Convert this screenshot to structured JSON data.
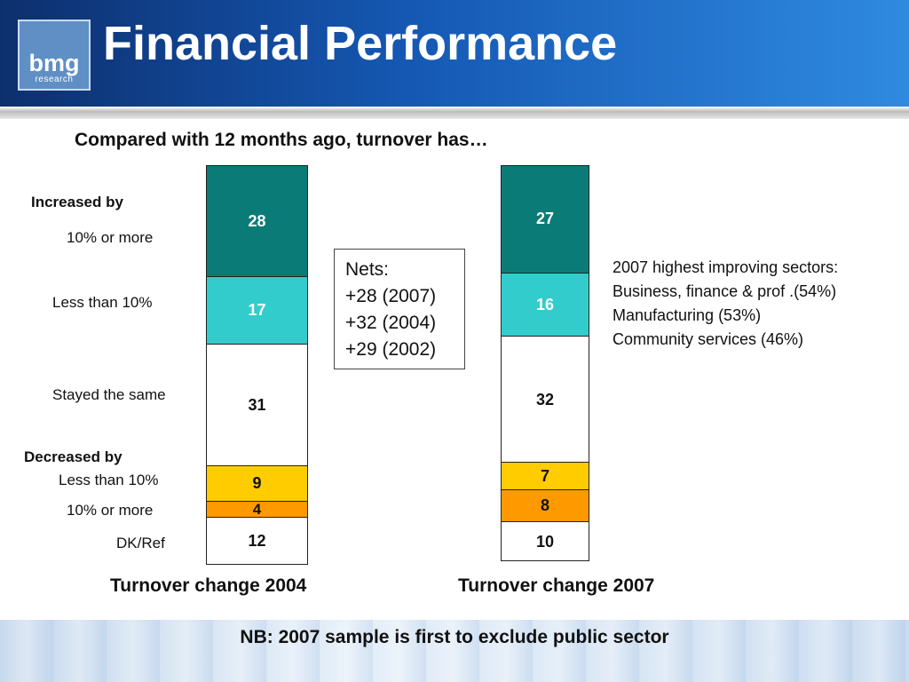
{
  "header": {
    "title": "Financial Performance",
    "logo": {
      "main": "bmg",
      "sub": "research"
    },
    "colors": {
      "gradient_start": "#0d2f6e",
      "gradient_end": "#2f8ae0"
    }
  },
  "chart_data": {
    "type": "bar",
    "stacked": true,
    "title": "Compared with 12 months ago, turnover has…",
    "row_labels": {
      "increased_by": "Increased by",
      "inc_10_more": "10% or more",
      "inc_less_10": "Less than 10%",
      "stayed_same": "Stayed the same",
      "decreased_by": "Decreased by",
      "dec_less_10": "Less than 10%",
      "dec_10_more": "10% or more",
      "dk_ref": "DK/Ref"
    },
    "categories": [
      "Turnover change 2004",
      "Turnover change 2007"
    ],
    "series": [
      {
        "key": "inc_10_more",
        "color": "#0b7b78",
        "text_color": "#ffffff",
        "values": [
          28,
          27
        ]
      },
      {
        "key": "inc_less_10",
        "color": "#33cccc",
        "text_color": "#ffffff",
        "values": [
          17,
          16
        ]
      },
      {
        "key": "stayed_same",
        "color": "#ffffff",
        "text_color": "#111111",
        "values": [
          31,
          32
        ]
      },
      {
        "key": "dec_less_10",
        "color": "#ffcc00",
        "text_color": "#111111",
        "values": [
          9,
          7
        ]
      },
      {
        "key": "dec_10_more",
        "color": "#ff9900",
        "text_color": "#111111",
        "values": [
          4,
          8
        ]
      },
      {
        "key": "dk_ref",
        "color": "#ffffff",
        "text_color": "#111111",
        "values": [
          12,
          10
        ]
      }
    ],
    "nets": [
      "Nets:",
      "+28 (2007)",
      "+32 (2004)",
      "+29 (2002)"
    ],
    "sectors": [
      "2007 highest improving sectors:",
      "Business, finance & prof .(54%)",
      "Manufacturing (53%)",
      "Community services (46%)"
    ]
  },
  "footer": {
    "note": "NB: 2007 sample is first to exclude public sector"
  }
}
